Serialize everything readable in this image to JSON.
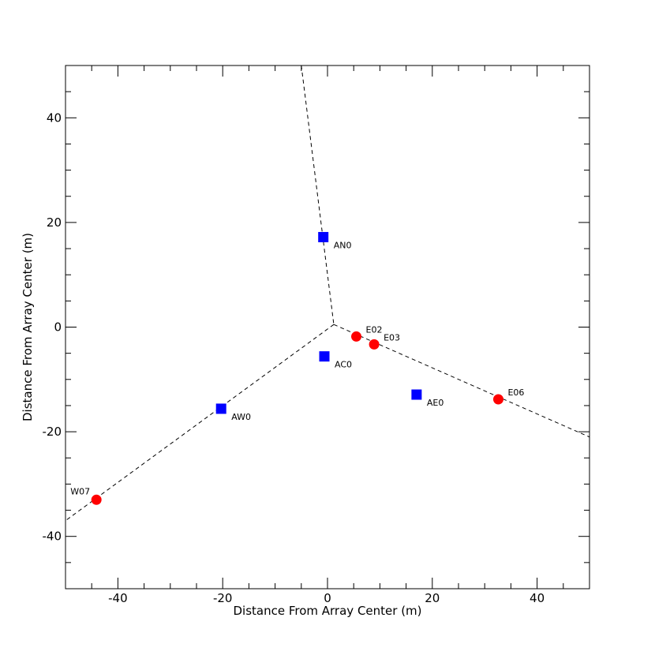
{
  "chart_data": {
    "type": "scatter",
    "title": "",
    "xlabel": "Distance From Array Center (m)",
    "ylabel": "Distance From Array Center (m)",
    "xlim": [
      -50,
      50
    ],
    "ylim": [
      -50,
      50
    ],
    "x_ticks": [
      -40,
      -20,
      0,
      20,
      40
    ],
    "y_ticks": [
      -40,
      -20,
      0,
      20,
      40
    ],
    "grid": false,
    "legend": "none",
    "guide_lines": [
      {
        "points": [
          [
            -5,
            50
          ],
          [
            1.2,
            0.5
          ]
        ]
      },
      {
        "points": [
          [
            1.2,
            0.5
          ],
          [
            50,
            -21
          ]
        ]
      },
      {
        "points": [
          [
            1.2,
            0.5
          ],
          [
            -50,
            -37
          ]
        ]
      }
    ],
    "series": [
      {
        "marker": "square",
        "color": "#0000ff",
        "points": [
          {
            "label": "AN0",
            "x": -0.8,
            "y": 17.2
          },
          {
            "label": "AC0",
            "x": -0.6,
            "y": -5.6
          },
          {
            "label": "AW0",
            "x": -20.3,
            "y": -15.6
          },
          {
            "label": "AE0",
            "x": 17,
            "y": -12.9
          }
        ]
      },
      {
        "marker": "circle",
        "color": "#ff0000",
        "points": [
          {
            "label": "E02",
            "x": 5.5,
            "y": -1.8
          },
          {
            "label": "E03",
            "x": 8.9,
            "y": -3.3
          },
          {
            "label": "E06",
            "x": 32.6,
            "y": -13.8
          },
          {
            "label": "W07",
            "x": -44.1,
            "y": -33
          }
        ]
      }
    ]
  }
}
